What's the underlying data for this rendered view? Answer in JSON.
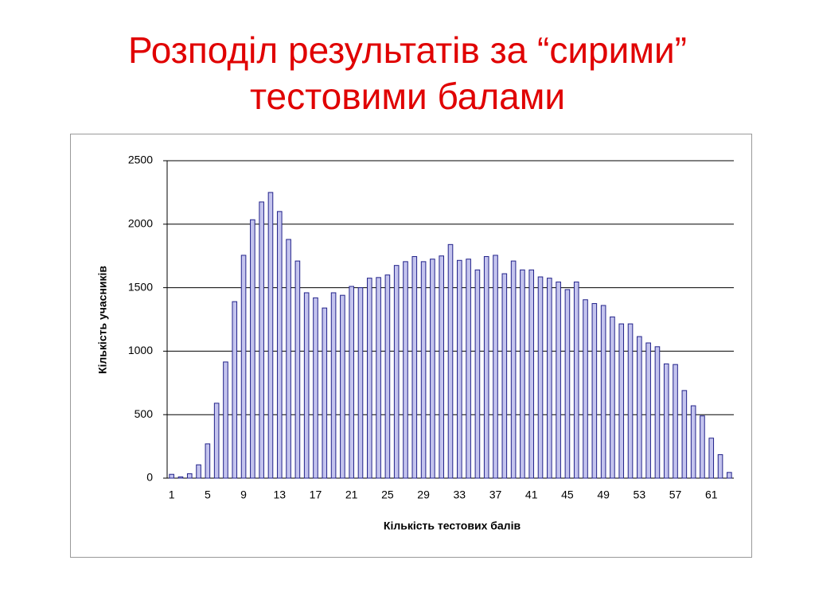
{
  "chart_data": {
    "type": "bar",
    "title": "Розподіл результатів за “сирими” тестовими балами",
    "x_label": "Кількість тестових балів",
    "y_label": "Кількість учасників",
    "categories": [
      "1",
      null,
      null,
      null,
      "5",
      null,
      null,
      null,
      "9",
      null,
      null,
      null,
      "13",
      null,
      null,
      null,
      "17",
      null,
      null,
      null,
      "21",
      null,
      null,
      null,
      "25",
      null,
      null,
      null,
      "29",
      null,
      null,
      null,
      "33",
      null,
      null,
      null,
      "37",
      null,
      null,
      null,
      "41",
      null,
      null,
      null,
      "45",
      null,
      null,
      null,
      "49",
      null,
      null,
      null,
      "53",
      null,
      null,
      null,
      "57",
      null,
      null,
      null,
      "61",
      null,
      null
    ],
    "values": [
      30,
      10,
      35,
      105,
      270,
      590,
      915,
      1390,
      1755,
      2035,
      2175,
      2250,
      2100,
      1880,
      1710,
      1460,
      1420,
      1340,
      1460,
      1440,
      1510,
      1500,
      1575,
      1580,
      1600,
      1675,
      1705,
      1745,
      1705,
      1725,
      1750,
      1840,
      1715,
      1725,
      1640,
      1745,
      1755,
      1610,
      1710,
      1640,
      1640,
      1585,
      1575,
      1545,
      1485,
      1545,
      1405,
      1375,
      1360,
      1270,
      1215,
      1215,
      1115,
      1065,
      1035,
      900,
      895,
      690,
      570,
      490,
      315,
      185,
      45
    ],
    "color": "#c4c4ee",
    "ylim": [
      0,
      2500
    ],
    "yticks": [
      0,
      500,
      1000,
      1500,
      2000,
      2500
    ],
    "grid": true
  }
}
